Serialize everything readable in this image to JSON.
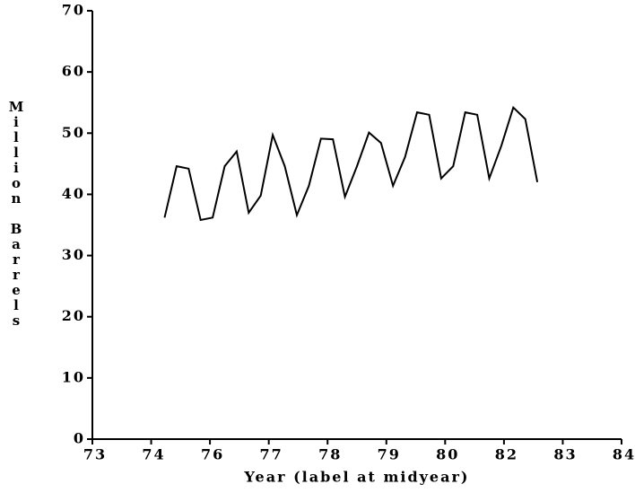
{
  "chart_data": {
    "type": "line",
    "x_label": "Year (label at midyear)",
    "y_label": "Million Barrels",
    "x": [
      74.5,
      74.75,
      75,
      75.25,
      75.5,
      75.75,
      76,
      76.25,
      76.5,
      76.75,
      77,
      77.25,
      77.5,
      77.75,
      78,
      78.25,
      78.5,
      78.75,
      79,
      79.25,
      79.5,
      79.75,
      80,
      80.25,
      80.5,
      80.75,
      81,
      81.25,
      81.5,
      81.75,
      82,
      82.25
    ],
    "values": [
      36.2,
      44.6,
      44.2,
      35.8,
      36.2,
      44.6,
      47,
      37,
      39.8,
      49.7,
      44.6,
      36.6,
      41.4,
      49.1,
      49,
      39.6,
      44.6,
      50.1,
      48.4,
      41.4,
      46.1,
      53.4,
      53,
      42.6,
      44.6,
      53.4,
      53,
      42.6,
      47.9,
      54.2,
      52.3,
      42
    ],
    "color": "#000000",
    "xlim": [
      73,
      84
    ],
    "xticks": [
      {
        "value": 73,
        "label": "73"
      },
      {
        "value": 74.222,
        "label": "74"
      },
      {
        "value": 75.444,
        "label": "76"
      },
      {
        "value": 76.667,
        "label": "77"
      },
      {
        "value": 77.889,
        "label": "78"
      },
      {
        "value": 79.111,
        "label": "79"
      },
      {
        "value": 80.333,
        "label": "80"
      },
      {
        "value": 81.556,
        "label": "82"
      },
      {
        "value": 82.778,
        "label": "83"
      },
      {
        "value": 84,
        "label": "84"
      }
    ],
    "ylim": [
      0,
      70
    ],
    "yticks": [
      0,
      10,
      20,
      30,
      40,
      50,
      60,
      70
    ]
  }
}
